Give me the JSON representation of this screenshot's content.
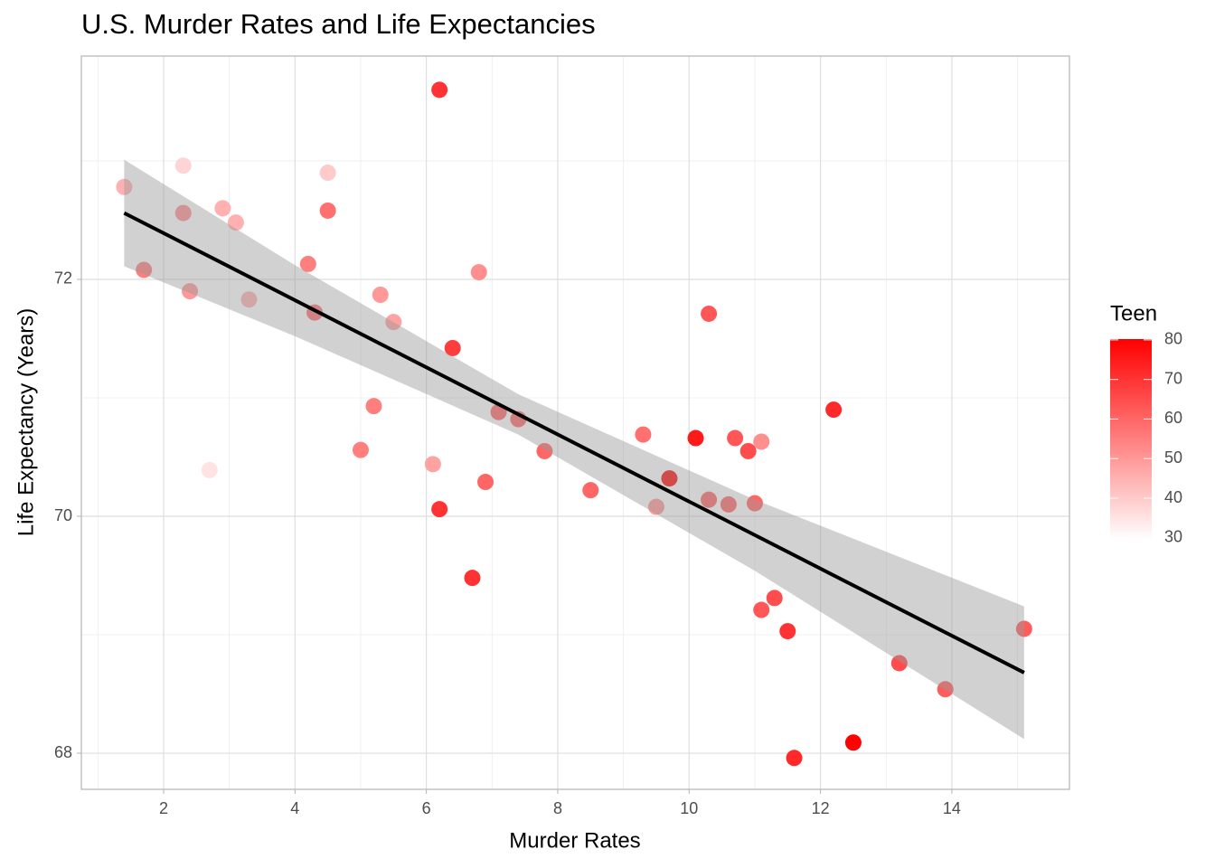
{
  "chart_data": {
    "type": "scatter",
    "title": "U.S. Murder Rates and Life Expectancies",
    "x_label": "Murder Rates",
    "y_label": "Life Expectancy (Years)",
    "legend_title": "Teen",
    "x": [
      1.4,
      1.7,
      2.3,
      2.3,
      2.4,
      2.7,
      2.9,
      3.1,
      3.3,
      4.2,
      4.3,
      4.5,
      4.5,
      5.0,
      5.2,
      5.3,
      5.5,
      6.1,
      6.2,
      6.2,
      6.4,
      6.7,
      6.8,
      6.9,
      7.1,
      7.4,
      7.8,
      8.5,
      9.3,
      9.5,
      9.7,
      10.1,
      10.3,
      10.3,
      10.6,
      10.7,
      10.9,
      11.0,
      11.1,
      11.1,
      11.3,
      11.5,
      11.6,
      12.2,
      12.5,
      13.2,
      13.9,
      15.1
    ],
    "y": [
      72.78,
      72.08,
      72.96,
      72.56,
      71.9,
      70.39,
      72.6,
      72.48,
      71.83,
      72.13,
      71.72,
      72.9,
      72.58,
      70.56,
      70.93,
      71.87,
      71.64,
      70.44,
      73.6,
      70.06,
      71.42,
      69.48,
      72.06,
      70.29,
      70.88,
      70.82,
      70.55,
      70.22,
      70.69,
      70.08,
      70.32,
      70.66,
      71.71,
      70.14,
      70.1,
      70.66,
      70.55,
      70.11,
      70.63,
      69.21,
      69.31,
      69.03,
      67.96,
      70.9,
      68.09,
      68.76,
      68.54,
      69.05
    ],
    "teen": [
      45,
      55,
      38,
      52,
      50,
      35,
      45,
      45,
      45,
      55,
      58,
      40,
      58,
      55,
      55,
      50,
      48,
      48,
      70,
      70,
      68,
      70,
      52,
      60,
      60,
      60,
      60,
      60,
      58,
      50,
      78,
      75,
      63,
      60,
      60,
      63,
      65,
      60,
      52,
      63,
      65,
      70,
      72,
      72,
      80,
      65,
      62,
      62
    ],
    "color_low": "#ffffff",
    "color_high": "#ff0000",
    "color_lim": [
      29.5,
      80.2
    ],
    "color_ticks": [
      30,
      40,
      50,
      60,
      70,
      80
    ],
    "fit": {
      "color": "#000000",
      "x": [
        1.4,
        15.1
      ],
      "y": [
        72.56,
        68.68
      ]
    },
    "band": {
      "color": "#999999",
      "x": [
        1.4,
        4,
        7.4,
        11,
        15.1
      ],
      "lower": [
        72.11,
        71.52,
        70.69,
        69.54,
        68.12
      ],
      "upper": [
        73.01,
        72.12,
        71.03,
        70.14,
        69.24
      ]
    },
    "xlim": [
      0.748,
      15.79
    ],
    "ylim": [
      67.695,
      73.885
    ],
    "xticks": [
      2,
      4,
      6,
      8,
      10,
      12,
      14
    ],
    "yticks": [
      68,
      70,
      72
    ],
    "minor_xticks": [
      1,
      3,
      5,
      7,
      9,
      11,
      13,
      15
    ],
    "minor_yticks": [
      69,
      71,
      73
    ],
    "grid": true
  }
}
